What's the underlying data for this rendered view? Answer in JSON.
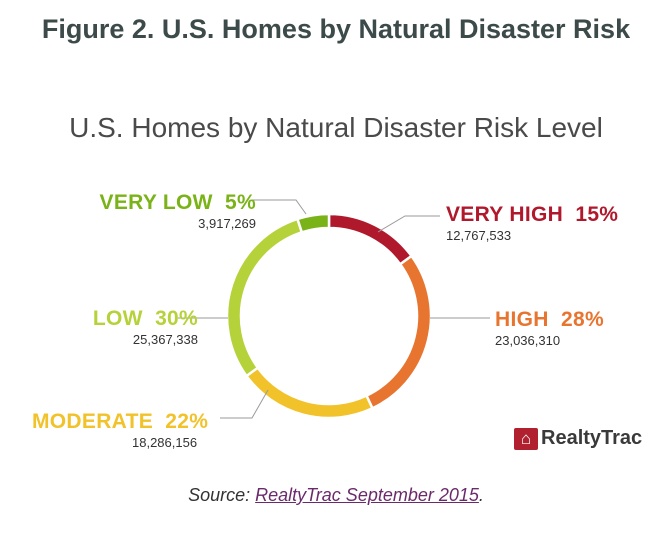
{
  "figure_title": "Figure 2. U.S. Homes by Natural Disaster Risk",
  "source": {
    "prefix": "Source: ",
    "link": "RealtyTrac  September 2015",
    "suffix": "."
  },
  "logo": {
    "text": "RealtyTrac"
  },
  "chart_data": {
    "type": "pie",
    "donut": true,
    "title": "U.S. Homes by Natural Disaster Risk Level",
    "slices": [
      {
        "label": "VERY HIGH",
        "percent": 15,
        "pct_text": "15%",
        "count": "12,767,533",
        "color": "#b0182c"
      },
      {
        "label": "HIGH",
        "percent": 28,
        "pct_text": "28%",
        "count": "23,036,310",
        "color": "#e8752f"
      },
      {
        "label": "MODERATE",
        "percent": 22,
        "pct_text": "22%",
        "count": "18,286,156",
        "color": "#f1c22a"
      },
      {
        "label": "LOW",
        "percent": 30,
        "pct_text": "30%",
        "count": "25,367,338",
        "color": "#b5d23a"
      },
      {
        "label": "VERY LOW",
        "percent": 5,
        "pct_text": "5%",
        "count": "3,917,269",
        "color": "#7ab317"
      }
    ]
  }
}
